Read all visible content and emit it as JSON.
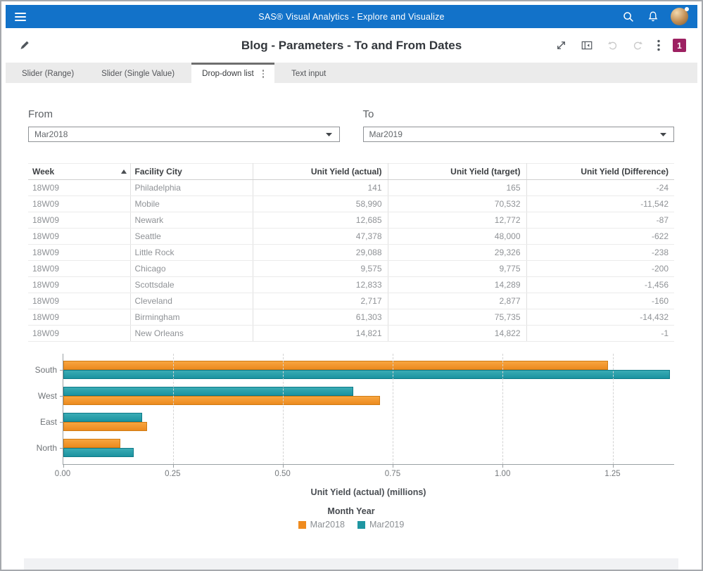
{
  "app_bar": {
    "title": "SAS® Visual Analytics - Explore and Visualize"
  },
  "header": {
    "title": "Blog - Parameters - To and From Dates",
    "alert_badge": "1"
  },
  "tabs": {
    "items": [
      {
        "label": "Slider (Range)",
        "active": false
      },
      {
        "label": "Slider (Single Value)",
        "active": false
      },
      {
        "label": "Drop-down list",
        "active": true
      },
      {
        "label": "Text input",
        "active": false
      }
    ]
  },
  "filters": {
    "from": {
      "label": "From",
      "value": "Mar2018"
    },
    "to": {
      "label": "To",
      "value": "Mar2019"
    }
  },
  "table": {
    "columns": [
      {
        "label": "Week",
        "align": "left",
        "sort": "asc"
      },
      {
        "label": "Facility City",
        "align": "left"
      },
      {
        "label": "Unit Yield (actual)",
        "align": "right"
      },
      {
        "label": "Unit Yield (target)",
        "align": "right"
      },
      {
        "label": "Unit Yield (Difference)",
        "align": "right"
      }
    ],
    "rows": [
      [
        "18W09",
        "Philadelphia",
        "141",
        "165",
        "-24"
      ],
      [
        "18W09",
        "Mobile",
        "58,990",
        "70,532",
        "-11,542"
      ],
      [
        "18W09",
        "Newark",
        "12,685",
        "12,772",
        "-87"
      ],
      [
        "18W09",
        "Seattle",
        "47,378",
        "48,000",
        "-622"
      ],
      [
        "18W09",
        "Little Rock",
        "29,088",
        "29,326",
        "-238"
      ],
      [
        "18W09",
        "Chicago",
        "9,575",
        "9,775",
        "-200"
      ],
      [
        "18W09",
        "Scottsdale",
        "12,833",
        "14,289",
        "-1,456"
      ],
      [
        "18W09",
        "Cleveland",
        "2,717",
        "2,877",
        "-160"
      ],
      [
        "18W09",
        "Birmingham",
        "61,303",
        "75,735",
        "-14,432"
      ],
      [
        "18W09",
        "New Orleans",
        "14,821",
        "14,822",
        "-1"
      ]
    ]
  },
  "chart_data": {
    "type": "bar",
    "orientation": "horizontal",
    "categories": [
      "South",
      "West",
      "East",
      "North"
    ],
    "series": [
      {
        "name": "Mar2018",
        "color": "#ef8b1f",
        "values": [
          1.24,
          0.72,
          0.19,
          0.13
        ]
      },
      {
        "name": "Mar2019",
        "color": "#1f96a2",
        "values": [
          1.38,
          0.66,
          0.18,
          0.16
        ]
      }
    ],
    "bar_order": [
      [
        "Mar2018",
        "Mar2019"
      ],
      [
        "Mar2019",
        "Mar2018"
      ],
      [
        "Mar2019",
        "Mar2018"
      ],
      [
        "Mar2018",
        "Mar2019"
      ]
    ],
    "xlabel": "Unit Yield (actual) (millions)",
    "xticks": [
      "0.00",
      "0.25",
      "0.50",
      "0.75",
      "1.00",
      "1.25"
    ],
    "xlim": [
      0,
      1.39
    ],
    "grid": "vertical-dashed",
    "legend_title": "Month Year",
    "legend_position": "bottom"
  },
  "colors": {
    "app_bar_blue": "#1272c9",
    "badge_magenta": "#9d2162",
    "series_orange": "#ef8b1f",
    "series_teal": "#1f96a2"
  }
}
